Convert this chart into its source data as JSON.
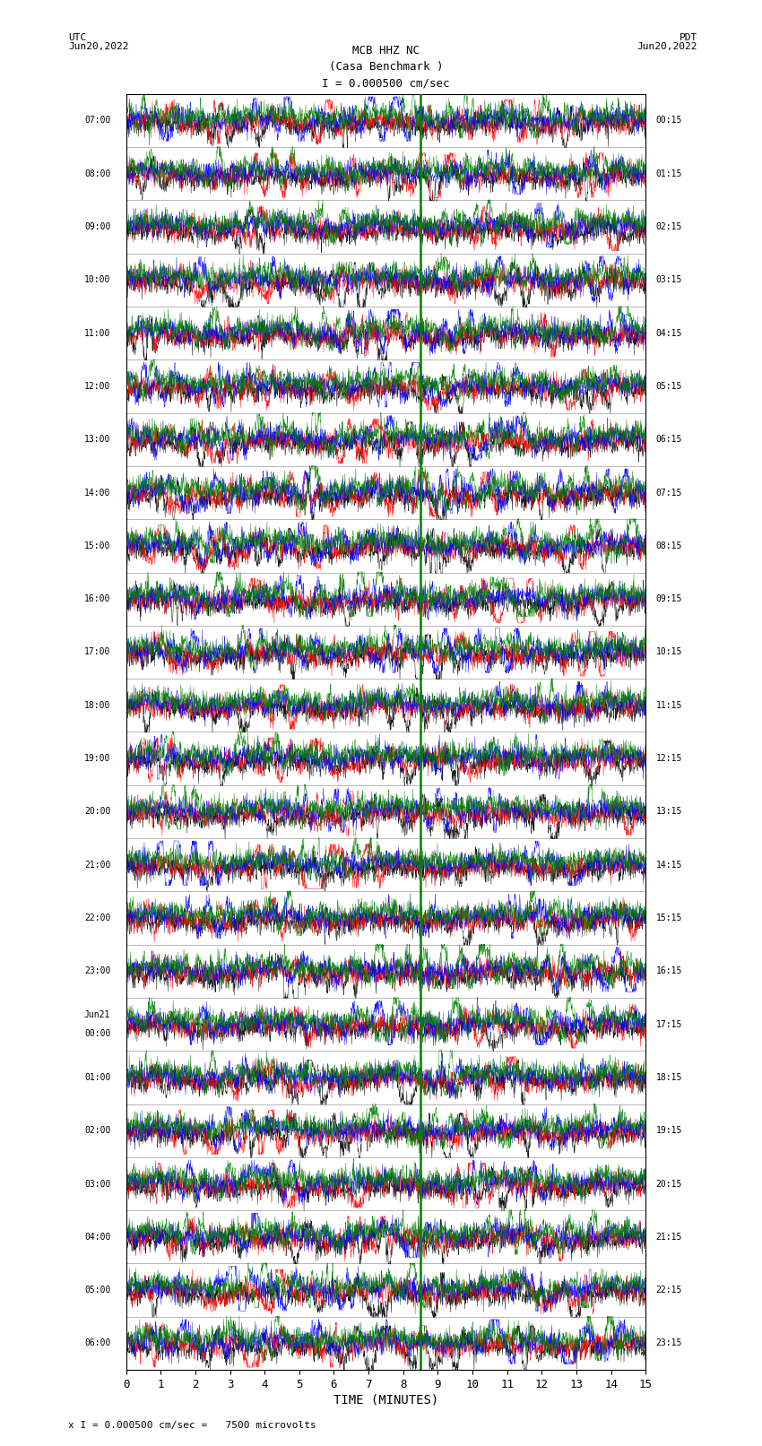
{
  "title_line1": "MCB HHZ NC",
  "title_line2": "(Casa Benchmark )",
  "title_line3": "I = 0.000500 cm/sec",
  "label_left_top": "UTC",
  "label_left_date": "Jun20,2022",
  "label_right_top": "PDT",
  "label_right_date": "Jun20,2022",
  "xlabel": "TIME (MINUTES)",
  "scale_label": "x I = 0.000500 cm/sec =   7500 microvolts",
  "left_times": [
    "07:00",
    "08:00",
    "09:00",
    "10:00",
    "11:00",
    "12:00",
    "13:00",
    "14:00",
    "15:00",
    "16:00",
    "17:00",
    "18:00",
    "19:00",
    "20:00",
    "21:00",
    "22:00",
    "23:00",
    "Jun21\n00:00",
    "01:00",
    "02:00",
    "03:00",
    "04:00",
    "05:00",
    "06:00"
  ],
  "right_times": [
    "00:15",
    "01:15",
    "02:15",
    "03:15",
    "04:15",
    "05:15",
    "06:15",
    "07:15",
    "08:15",
    "09:15",
    "10:15",
    "11:15",
    "12:15",
    "13:15",
    "14:15",
    "15:15",
    "16:15",
    "17:15",
    "18:15",
    "19:15",
    "20:15",
    "21:15",
    "22:15",
    "23:15"
  ],
  "xticks": [
    0,
    1,
    2,
    3,
    4,
    5,
    6,
    7,
    8,
    9,
    10,
    11,
    12,
    13,
    14,
    15
  ],
  "xmin": 0,
  "xmax": 15,
  "num_rows": 24,
  "trace_colors": [
    "black",
    "red",
    "blue",
    "green"
  ],
  "bg_color": "white",
  "green_line_x": 8.5,
  "figsize": [
    8.5,
    16.13
  ],
  "dpi": 100
}
